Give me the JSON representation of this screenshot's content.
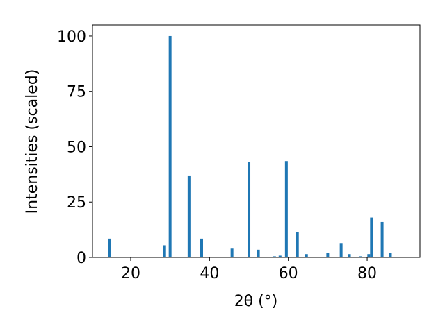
{
  "chart_data": {
    "type": "bar",
    "xlabel": "2θ (°)",
    "ylabel": "Intensities (scaled)",
    "x": [
      14.7,
      28.6,
      30.0,
      34.8,
      38.0,
      42.9,
      45.7,
      50.0,
      52.4,
      56.5,
      57.9,
      59.5,
      62.3,
      64.6,
      70.0,
      73.4,
      75.5,
      78.3,
      80.4,
      81.1,
      83.8,
      85.9
    ],
    "values": [
      8.5,
      5.5,
      100,
      37,
      8.5,
      0.3,
      4,
      43,
      3.5,
      0.5,
      0.8,
      43.5,
      11.5,
      1.5,
      2,
      6.5,
      1.5,
      0.5,
      1.5,
      18,
      16,
      2
    ],
    "color": "#1f77b4",
    "xlim": [
      10.3,
      93.4
    ],
    "xticks": [
      20,
      40,
      60,
      80
    ],
    "ylim": [
      0,
      105
    ],
    "yticks": [
      0,
      25,
      50,
      75,
      100
    ]
  }
}
